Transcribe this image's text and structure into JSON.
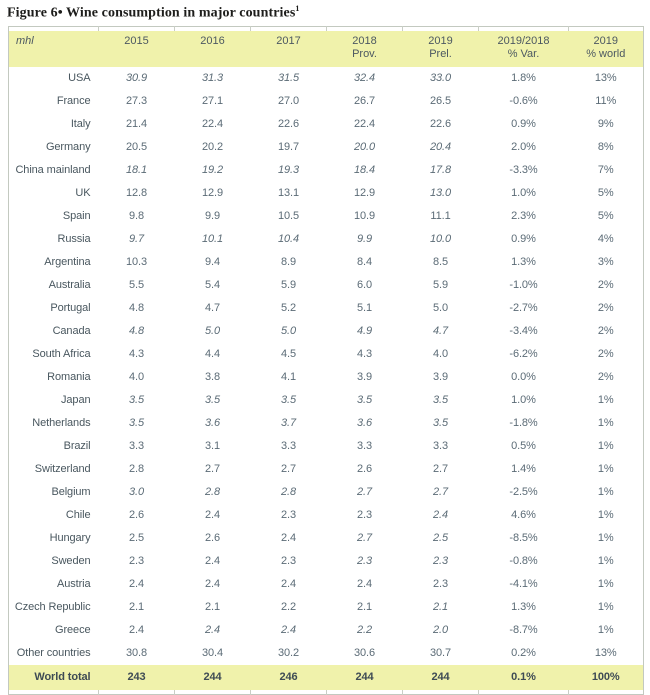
{
  "figure": {
    "title": "Figure 6• Wine consumption in major countries",
    "superscript": "1"
  },
  "header": {
    "line1": [
      "2015",
      "2016",
      "2017",
      "2018",
      "2019",
      "2019/2018",
      "2019"
    ],
    "line2": [
      "",
      "",
      "",
      "Prov.",
      "Prel.",
      "% Var.",
      "% world"
    ]
  },
  "colors": {
    "band_yellow": "#f0f2ab",
    "border_gray": "#c3c9c0",
    "value_text": "#5b6b76",
    "label_text": "#49575f",
    "total_text": "#3e4b54",
    "title_text": "#1d1d1b"
  },
  "chart_data": {
    "type": "table",
    "title": "Figure 6• Wine consumption in major countries",
    "unit": "mhl",
    "columns": [
      "2015",
      "2016",
      "2017",
      "2018 Prov.",
      "2019 Prel.",
      "2019/2018 % Var.",
      "2019 % world"
    ],
    "rows": [
      {
        "country": "USA",
        "cells": [
          "30.9",
          "31.3",
          "31.5",
          "32.4",
          "33.0",
          "1.8%",
          "13%"
        ],
        "italic": [
          1,
          1,
          1,
          1,
          1,
          0,
          0
        ]
      },
      {
        "country": "France",
        "cells": [
          "27.3",
          "27.1",
          "27.0",
          "26.7",
          "26.5",
          "-0.6%",
          "11%"
        ],
        "italic": [
          0,
          0,
          0,
          0,
          0,
          0,
          0
        ]
      },
      {
        "country": "Italy",
        "cells": [
          "21.4",
          "22.4",
          "22.6",
          "22.4",
          "22.6",
          "0.9%",
          "9%"
        ],
        "italic": [
          0,
          0,
          0,
          0,
          0,
          0,
          0
        ]
      },
      {
        "country": "Germany",
        "cells": [
          "20.5",
          "20.2",
          "19.7",
          "20.0",
          "20.4",
          "2.0%",
          "8%"
        ],
        "italic": [
          0,
          0,
          0,
          1,
          1,
          0,
          0
        ]
      },
      {
        "country": "China mainland",
        "cells": [
          "18.1",
          "19.2",
          "19.3",
          "18.4",
          "17.8",
          "-3.3%",
          "7%"
        ],
        "italic": [
          1,
          1,
          1,
          1,
          1,
          0,
          0
        ]
      },
      {
        "country": "UK",
        "cells": [
          "12.8",
          "12.9",
          "13.1",
          "12.9",
          "13.0",
          "1.0%",
          "5%"
        ],
        "italic": [
          0,
          0,
          0,
          0,
          1,
          0,
          0
        ]
      },
      {
        "country": "Spain",
        "cells": [
          "9.8",
          "9.9",
          "10.5",
          "10.9",
          "11.1",
          "2.3%",
          "5%"
        ],
        "italic": [
          0,
          0,
          0,
          0,
          0,
          0,
          0
        ]
      },
      {
        "country": "Russia",
        "cells": [
          "9.7",
          "10.1",
          "10.4",
          "9.9",
          "10.0",
          "0.9%",
          "4%"
        ],
        "italic": [
          1,
          1,
          1,
          1,
          1,
          0,
          0
        ]
      },
      {
        "country": "Argentina",
        "cells": [
          "10.3",
          "9.4",
          "8.9",
          "8.4",
          "8.5",
          "1.3%",
          "3%"
        ],
        "italic": [
          0,
          0,
          0,
          0,
          0,
          0,
          0
        ]
      },
      {
        "country": "Australia",
        "cells": [
          "5.5",
          "5.4",
          "5.9",
          "6.0",
          "5.9",
          "-1.0%",
          "2%"
        ],
        "italic": [
          0,
          0,
          0,
          0,
          0,
          0,
          0
        ]
      },
      {
        "country": "Portugal",
        "cells": [
          "4.8",
          "4.7",
          "5.2",
          "5.1",
          "5.0",
          "-2.7%",
          "2%"
        ],
        "italic": [
          0,
          0,
          0,
          0,
          0,
          0,
          0
        ]
      },
      {
        "country": "Canada",
        "cells": [
          "4.8",
          "5.0",
          "5.0",
          "4.9",
          "4.7",
          "-3.4%",
          "2%"
        ],
        "italic": [
          1,
          1,
          1,
          1,
          1,
          0,
          0
        ]
      },
      {
        "country": "South Africa",
        "cells": [
          "4.3",
          "4.4",
          "4.5",
          "4.3",
          "4.0",
          "-6.2%",
          "2%"
        ],
        "italic": [
          0,
          0,
          0,
          0,
          0,
          0,
          0
        ]
      },
      {
        "country": "Romania",
        "cells": [
          "4.0",
          "3.8",
          "4.1",
          "3.9",
          "3.9",
          "0.0%",
          "2%"
        ],
        "italic": [
          0,
          0,
          0,
          0,
          0,
          0,
          0
        ]
      },
      {
        "country": "Japan",
        "cells": [
          "3.5",
          "3.5",
          "3.5",
          "3.5",
          "3.5",
          "1.0%",
          "1%"
        ],
        "italic": [
          1,
          1,
          1,
          1,
          1,
          0,
          0
        ]
      },
      {
        "country": "Netherlands",
        "cells": [
          "3.5",
          "3.6",
          "3.7",
          "3.6",
          "3.5",
          "-1.8%",
          "1%"
        ],
        "italic": [
          1,
          1,
          1,
          1,
          1,
          0,
          0
        ]
      },
      {
        "country": "Brazil",
        "cells": [
          "3.3",
          "3.1",
          "3.3",
          "3.3",
          "3.3",
          "0.5%",
          "1%"
        ],
        "italic": [
          0,
          0,
          0,
          0,
          0,
          0,
          0
        ]
      },
      {
        "country": "Switzerland",
        "cells": [
          "2.8",
          "2.7",
          "2.7",
          "2.6",
          "2.7",
          "1.4%",
          "1%"
        ],
        "italic": [
          0,
          0,
          0,
          0,
          0,
          0,
          0
        ]
      },
      {
        "country": "Belgium",
        "cells": [
          "3.0",
          "2.8",
          "2.8",
          "2.7",
          "2.7",
          "-2.5%",
          "1%"
        ],
        "italic": [
          1,
          1,
          1,
          1,
          1,
          0,
          0
        ]
      },
      {
        "country": "Chile",
        "cells": [
          "2.6",
          "2.4",
          "2.3",
          "2.3",
          "2.4",
          "4.6%",
          "1%"
        ],
        "italic": [
          0,
          0,
          0,
          0,
          1,
          0,
          0
        ]
      },
      {
        "country": "Hungary",
        "cells": [
          "2.5",
          "2.6",
          "2.4",
          "2.7",
          "2.5",
          "-8.5%",
          "1%"
        ],
        "italic": [
          0,
          0,
          0,
          1,
          1,
          0,
          0
        ]
      },
      {
        "country": "Sweden",
        "cells": [
          "2.3",
          "2.4",
          "2.3",
          "2.3",
          "2.3",
          "-0.8%",
          "1%"
        ],
        "italic": [
          0,
          0,
          0,
          1,
          1,
          0,
          0
        ]
      },
      {
        "country": "Austria",
        "cells": [
          "2.4",
          "2.4",
          "2.4",
          "2.4",
          "2.3",
          "-4.1%",
          "1%"
        ],
        "italic": [
          0,
          0,
          0,
          0,
          0,
          0,
          0
        ]
      },
      {
        "country": "Czech Republic",
        "cells": [
          "2.1",
          "2.1",
          "2.2",
          "2.1",
          "2.1",
          "1.3%",
          "1%"
        ],
        "italic": [
          0,
          0,
          0,
          0,
          1,
          0,
          0
        ]
      },
      {
        "country": "Greece",
        "cells": [
          "2.4",
          "2.4",
          "2.4",
          "2.2",
          "2.0",
          "-8.7%",
          "1%"
        ],
        "italic": [
          0,
          1,
          1,
          1,
          1,
          0,
          0
        ]
      },
      {
        "country": "Other countries",
        "cells": [
          "30.8",
          "30.4",
          "30.2",
          "30.6",
          "30.7",
          "0.2%",
          "13%"
        ],
        "italic": [
          0,
          0,
          0,
          0,
          0,
          0,
          0
        ]
      }
    ],
    "total": {
      "label": "World total",
      "cells": [
        "243",
        "244",
        "246",
        "244",
        "244",
        "0.1%",
        "100%"
      ]
    }
  }
}
